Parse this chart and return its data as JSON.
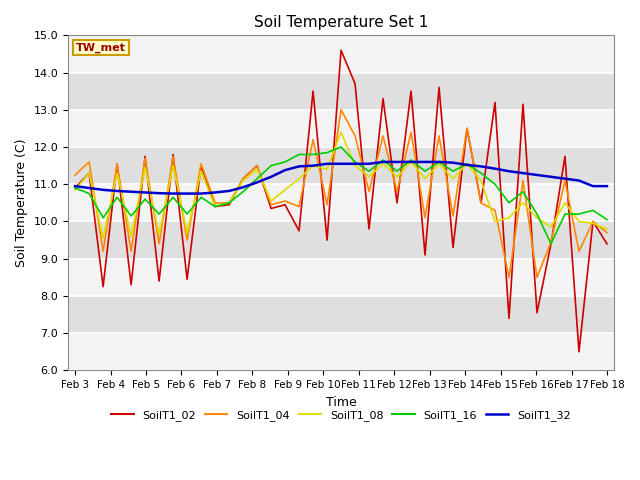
{
  "title": "Soil Temperature Set 1",
  "xlabel": "Time",
  "ylabel": "Soil Temperature (C)",
  "ylim": [
    6.0,
    15.0
  ],
  "yticks": [
    6.0,
    7.0,
    8.0,
    9.0,
    10.0,
    11.0,
    12.0,
    13.0,
    14.0,
    15.0
  ],
  "annotation": "TW_met",
  "x_labels": [
    "Feb 3",
    "Feb 4",
    "Feb 5",
    "Feb 6",
    "Feb 7",
    "Feb 8",
    "Feb 9",
    "Feb 10",
    "Feb 11",
    "Feb 12",
    "Feb 13",
    "Feb 14",
    "Feb 15",
    "Feb 16",
    "Feb 17",
    "Feb 18"
  ],
  "series": {
    "SoilT1_02": {
      "color": "#cc0000",
      "linewidth": 1.2,
      "data": [
        10.9,
        11.3,
        8.25,
        11.55,
        8.3,
        11.75,
        8.4,
        11.8,
        8.45,
        11.5,
        10.4,
        10.45,
        11.15,
        11.5,
        10.35,
        10.45,
        9.75,
        13.5,
        9.5,
        14.6,
        13.7,
        9.8,
        13.3,
        10.5,
        13.5,
        9.1,
        13.6,
        9.3,
        12.5,
        10.5,
        13.2,
        7.4,
        13.15,
        7.55,
        9.4,
        11.75,
        6.5,
        10.0,
        9.4
      ]
    },
    "SoilT1_04": {
      "color": "#ff8800",
      "linewidth": 1.2,
      "data": [
        11.25,
        11.6,
        9.2,
        11.55,
        9.2,
        11.7,
        9.4,
        11.75,
        9.5,
        11.55,
        10.5,
        10.5,
        11.15,
        11.5,
        10.45,
        10.55,
        10.4,
        12.2,
        10.45,
        13.0,
        12.3,
        10.8,
        12.3,
        10.8,
        12.4,
        10.1,
        12.3,
        10.15,
        12.5,
        10.5,
        10.3,
        8.5,
        11.1,
        8.5,
        9.45,
        11.1,
        9.2,
        10.0,
        9.7
      ]
    },
    "SoilT1_08": {
      "color": "#dddd00",
      "linewidth": 1.2,
      "data": [
        10.85,
        11.3,
        9.55,
        11.3,
        9.6,
        11.45,
        9.65,
        11.5,
        9.7,
        11.35,
        10.4,
        10.5,
        11.1,
        11.4,
        10.55,
        10.85,
        11.15,
        11.5,
        11.4,
        12.4,
        11.5,
        11.2,
        11.55,
        11.2,
        11.6,
        11.15,
        11.55,
        11.15,
        11.55,
        11.1,
        10.0,
        10.1,
        10.5,
        10.1,
        9.85,
        10.5,
        10.0,
        9.95,
        9.8
      ]
    },
    "SoilT1_16": {
      "color": "#00cc00",
      "linewidth": 1.2,
      "data": [
        10.9,
        10.75,
        10.1,
        10.65,
        10.15,
        10.6,
        10.2,
        10.65,
        10.2,
        10.65,
        10.4,
        10.5,
        10.8,
        11.15,
        11.5,
        11.6,
        11.8,
        11.8,
        11.85,
        12.0,
        11.6,
        11.35,
        11.65,
        11.35,
        11.65,
        11.35,
        11.6,
        11.35,
        11.55,
        11.3,
        11.0,
        10.5,
        10.8,
        10.2,
        9.4,
        10.2,
        10.2,
        10.3,
        10.05
      ]
    },
    "SoilT1_32": {
      "color": "#0000cc",
      "linewidth": 1.8,
      "data": [
        10.95,
        10.9,
        10.85,
        10.82,
        10.8,
        10.78,
        10.76,
        10.75,
        10.75,
        10.75,
        10.78,
        10.82,
        10.92,
        11.05,
        11.2,
        11.38,
        11.48,
        11.5,
        11.55,
        11.55,
        11.55,
        11.55,
        11.6,
        11.6,
        11.6,
        11.6,
        11.6,
        11.58,
        11.52,
        11.48,
        11.42,
        11.35,
        11.3,
        11.25,
        11.2,
        11.15,
        11.1,
        10.95,
        10.95
      ]
    }
  }
}
